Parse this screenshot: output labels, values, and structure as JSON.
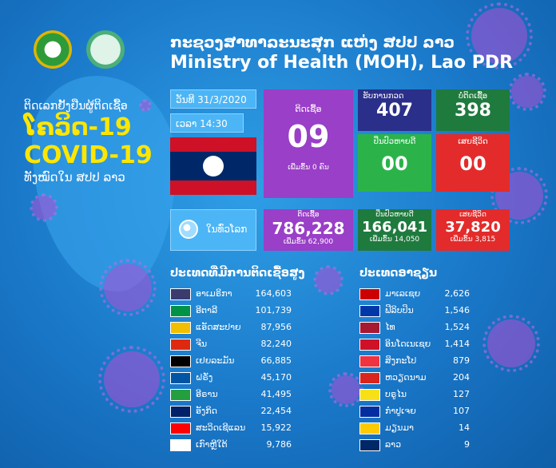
{
  "header": {
    "title_lao": "ກະຊວງສາທາລະນະສຸກ ແຫ່ງ ສປປ ລາວ",
    "title_en": "Ministry of Health (MOH), Lao PDR"
  },
  "side": {
    "subtitle": "ຕິດເລກຢັ້ງຢືນຜູ້ຕິດເຊື້ອ",
    "title_lao": "ໂຄວິດ-19",
    "title_en": "COVID-19",
    "footer": "ທັງໝົດໃນ ສປປ ລາວ"
  },
  "date": {
    "date_label": "ວັນທີ 31/3/2020",
    "time_label": "ເວລາ 14:30"
  },
  "lao": {
    "infected": {
      "label": "ຕິດເຊື້ອ",
      "value": "09",
      "note": "ເພີ່ມຂຶ້ນ 0 ຄົນ"
    },
    "tested": {
      "label": "ຮັບການກວດ",
      "value": "407"
    },
    "negative": {
      "label": "ບໍ່ຕິດເຊື້ອ",
      "value": "398"
    },
    "recovered": {
      "label": "ປິ່ນປົວຫາຍດີ",
      "value": "00"
    },
    "deaths": {
      "label": "ເສຍຊີວິດ",
      "value": "00"
    }
  },
  "world": {
    "label": "ໃນທົ່ວໂລກ",
    "infected": {
      "label": "ຕິດເຊື້ອ",
      "value": "786,228",
      "note": "ເພີ່ມຂຶ້ນ 62,900"
    },
    "recovered": {
      "label": "ປິ່ນປົວຫາຍດີ",
      "value": "166,041",
      "note": "ເພີ່ມຂຶ້ນ 14,050"
    },
    "deaths": {
      "label": "ເສຍຊີວິດ",
      "value": "37,820",
      "note": "ເພີ່ມຂຶ້ນ 3,815"
    }
  },
  "top_countries": {
    "title": "ປະເທດທີ່ມີການຕິດເຊື້ອສູງ",
    "rows": [
      {
        "name": "ອາເມຣິກາ",
        "value": "164,603"
      },
      {
        "name": "ອີຕາລີ",
        "value": "101,739"
      },
      {
        "name": "ແອັດສະປາຍ",
        "value": "87,956"
      },
      {
        "name": "ຈີນ",
        "value": "82,240"
      },
      {
        "name": "ເຢຍລະມັນ",
        "value": "66,885"
      },
      {
        "name": "ຝຣັ່ງ",
        "value": "45,170"
      },
      {
        "name": "ອີຣານ",
        "value": "41,495"
      },
      {
        "name": "ອັງກິດ",
        "value": "22,454"
      },
      {
        "name": "ສະວິດເຊີແລນ",
        "value": "15,922"
      },
      {
        "name": "ເກົາຫຼີໃຕ້",
        "value": "9,786"
      }
    ]
  },
  "asean": {
    "title": "ປະເທດອາຊຽນ",
    "rows": [
      {
        "name": "ມາເລເຊຍ",
        "value": "2,626"
      },
      {
        "name": "ຟີລິບປິນ",
        "value": "1,546"
      },
      {
        "name": "ໄທ",
        "value": "1,524"
      },
      {
        "name": "ອິນໂດເນເຊຍ",
        "value": "1,414"
      },
      {
        "name": "ສິງກະໂປ",
        "value": "879"
      },
      {
        "name": "ຫວຽດນາມ",
        "value": "204"
      },
      {
        "name": "ບຣູໄນ",
        "value": "127"
      },
      {
        "name": "ກຳປູເຈຍ",
        "value": "107"
      },
      {
        "name": "ມຽນມາ",
        "value": "14"
      },
      {
        "name": "ລາວ",
        "value": "9"
      }
    ]
  },
  "flags": {
    "top": [
      "#3c3b6e",
      "#009246",
      "#f1bf00",
      "#de2910",
      "#000000",
      "#0055a4",
      "#239f40",
      "#012169",
      "#ff0000",
      "#ffffff"
    ],
    "asean": [
      "#cc0001",
      "#0038a8",
      "#a51931",
      "#ce1126",
      "#ef3340",
      "#da251d",
      "#f7e017",
      "#032ea1",
      "#fecb00",
      "#002868"
    ]
  }
}
